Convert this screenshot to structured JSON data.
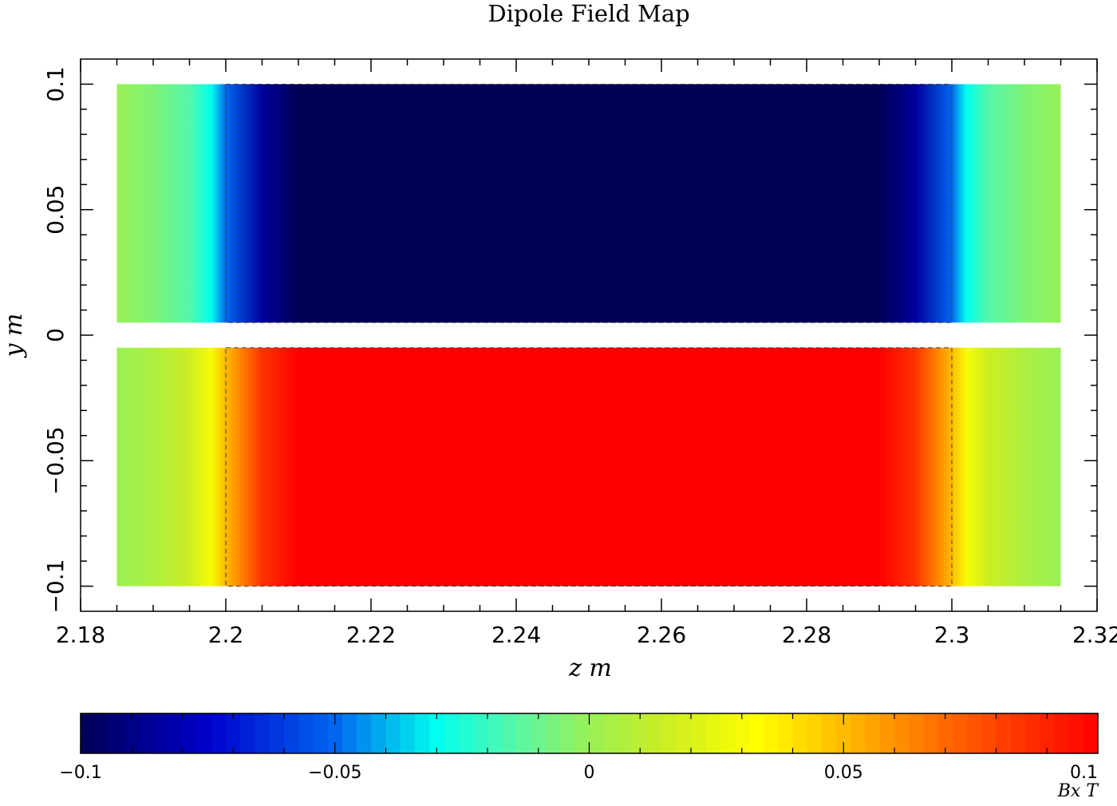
{
  "chart_data": {
    "type": "heatmap",
    "title": "Dipole Field Map",
    "xlabel": "z m",
    "ylabel": "y m",
    "xlim": [
      2.18,
      2.32
    ],
    "ylim": [
      -0.11,
      0.11
    ],
    "x_ticks": [
      "2.18",
      "2.2",
      "2.22",
      "2.24",
      "2.26",
      "2.28",
      "2.3",
      "2.32"
    ],
    "y_ticks": [
      "0.1",
      "0.05",
      "0",
      "−0.05",
      "−0.1"
    ],
    "grid": false,
    "regions": [
      {
        "z_range": [
          2.185,
          2.315
        ],
        "y_range": [
          0.005,
          0.1
        ],
        "profile": [
          [
            2.185,
            0.0
          ],
          [
            2.19,
            -0.006
          ],
          [
            2.195,
            -0.015
          ],
          [
            2.198,
            -0.03
          ],
          [
            2.2,
            -0.05
          ],
          [
            2.205,
            -0.085
          ],
          [
            2.21,
            -0.1
          ],
          [
            2.29,
            -0.1
          ],
          [
            2.295,
            -0.085
          ],
          [
            2.3,
            -0.05
          ],
          [
            2.302,
            -0.03
          ],
          [
            2.305,
            -0.015
          ],
          [
            2.31,
            -0.006
          ],
          [
            2.315,
            0.0
          ]
        ]
      },
      {
        "z_range": [
          2.185,
          2.315
        ],
        "y_range": [
          -0.1,
          -0.005
        ],
        "profile": [
          [
            2.185,
            0.0
          ],
          [
            2.19,
            0.006
          ],
          [
            2.195,
            0.015
          ],
          [
            2.198,
            0.03
          ],
          [
            2.2,
            0.05
          ],
          [
            2.205,
            0.085
          ],
          [
            2.21,
            0.1
          ],
          [
            2.29,
            0.1
          ],
          [
            2.295,
            0.085
          ],
          [
            2.3,
            0.05
          ],
          [
            2.302,
            0.03
          ],
          [
            2.305,
            0.015
          ],
          [
            2.31,
            0.006
          ],
          [
            2.315,
            0.0
          ]
        ]
      }
    ],
    "outlines": [
      {
        "z_range": [
          2.2,
          2.3
        ],
        "y_range": [
          0.005,
          0.1
        ]
      },
      {
        "z_range": [
          2.2,
          2.3
        ],
        "y_range": [
          -0.1,
          -0.005
        ]
      }
    ],
    "colorbar": {
      "min": -0.1,
      "max": 0.1,
      "ticks": [
        "−0.1",
        "−0.05",
        "0",
        "0.05",
        "0.1"
      ],
      "unit": "Bx T",
      "stops": [
        [
          -0.1,
          "#000055"
        ],
        [
          -0.075,
          "#0000cc"
        ],
        [
          -0.05,
          "#0066ee"
        ],
        [
          -0.03,
          "#00ffee"
        ],
        [
          -0.015,
          "#55f7aa"
        ],
        [
          0.0,
          "#99f055"
        ],
        [
          0.015,
          "#ccee22"
        ],
        [
          0.033,
          "#ffff00"
        ],
        [
          0.05,
          "#ffbb00"
        ],
        [
          0.075,
          "#ff5500"
        ],
        [
          0.1,
          "#ff0000"
        ]
      ]
    }
  }
}
